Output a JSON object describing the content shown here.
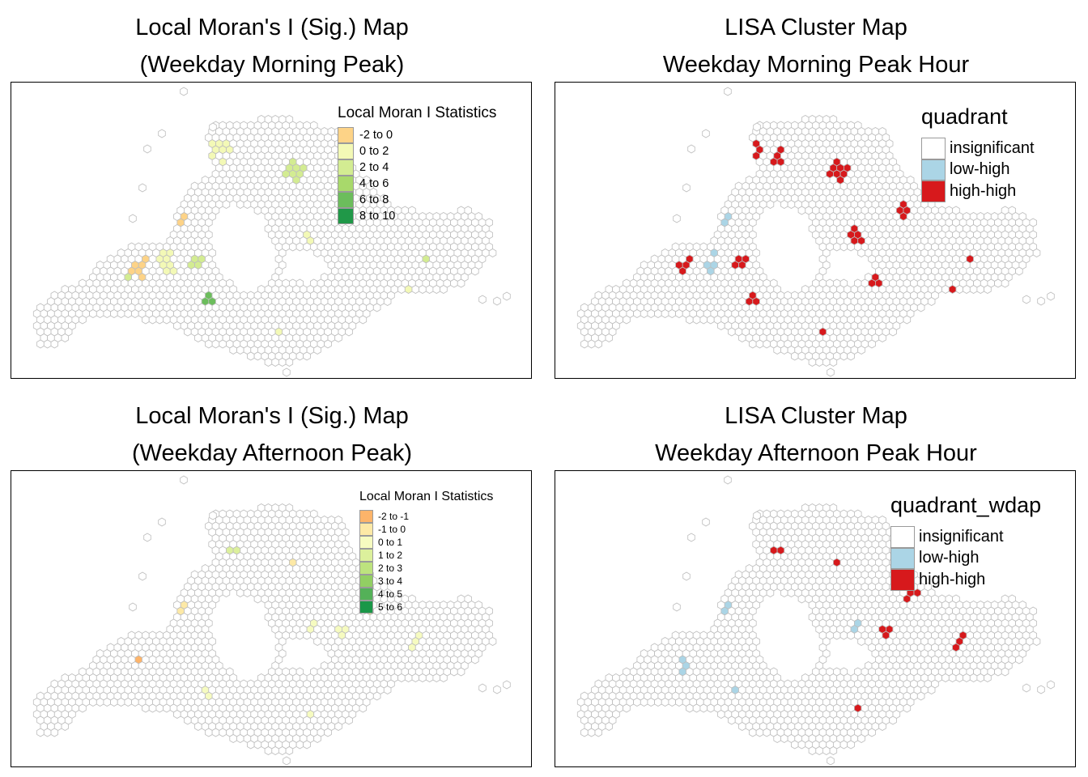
{
  "panels": [
    {
      "title_line1": "Local Moran's I (Sig.) Map",
      "title_line2": "(Weekday Morning Peak)",
      "legend": {
        "title": "Local Moran I Statistics",
        "items": [
          {
            "label": "-2 to 0",
            "color": "#fdd387"
          },
          {
            "label": "0 to 2",
            "color": "#f3f9b6"
          },
          {
            "label": "2 to 4",
            "color": "#d3ec92"
          },
          {
            "label": "4 to 6",
            "color": "#a8d96b"
          },
          {
            "label": "6 to 8",
            "color": "#6cbd5c"
          },
          {
            "label": "8 to 10",
            "color": "#209848"
          }
        ]
      }
    },
    {
      "title_line1": "LISA Cluster Map",
      "title_line2": "Weekday Morning Peak Hour",
      "legend": {
        "title": "quadrant",
        "items": [
          {
            "label": "insignificant",
            "color": "#ffffff"
          },
          {
            "label": "low-high",
            "color": "#abd5e6"
          },
          {
            "label": "high-high",
            "color": "#d7191c"
          }
        ]
      }
    },
    {
      "title_line1": "Local Moran's I (Sig.) Map",
      "title_line2": "(Weekday Afternoon Peak)",
      "legend": {
        "title": "Local Moran I Statistics",
        "items": [
          {
            "label": "-2 to -1",
            "color": "#fdb46a"
          },
          {
            "label": "-1 to 0",
            "color": "#fde9a6"
          },
          {
            "label": "0 to 1",
            "color": "#f6fbc0"
          },
          {
            "label": "1 to 2",
            "color": "#dcf09c"
          },
          {
            "label": "2 to 3",
            "color": "#bde37e"
          },
          {
            "label": "3 to 4",
            "color": "#92cf63"
          },
          {
            "label": "4 to 5",
            "color": "#54b158"
          },
          {
            "label": "5 to 6",
            "color": "#1a9748"
          }
        ]
      }
    },
    {
      "title_line1": "LISA Cluster Map",
      "title_line2": "Weekday Afternoon Peak Hour",
      "legend": {
        "title": "quadrant_wdap",
        "items": [
          {
            "label": "insignificant",
            "color": "#ffffff"
          },
          {
            "label": "low-high",
            "color": "#abd5e6"
          },
          {
            "label": "high-high",
            "color": "#d7191c"
          }
        ]
      }
    }
  ]
}
